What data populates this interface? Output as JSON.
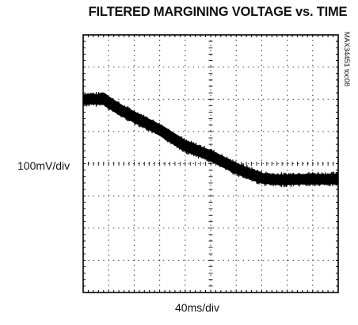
{
  "chart_data": {
    "type": "line",
    "title": "FILTERED MARGINING VOLTAGE vs. TIME",
    "xlabel": "40ms/div",
    "ylabel": "100mV/div",
    "annotation": "MAX34451 toc08",
    "grid": true,
    "xlim": [
      0,
      10
    ],
    "ylim": [
      -4,
      4
    ],
    "series": [
      {
        "x": [
          0,
          0.7,
          0.75,
          1.0,
          1.5,
          2.0,
          2.5,
          3.0,
          3.5,
          4.0,
          4.5,
          5.0,
          5.5,
          6.0,
          6.5,
          7.0,
          7.5,
          8.0,
          8.5,
          9.0,
          9.5,
          10.0
        ],
        "y": [
          2.0,
          2.0,
          2.05,
          1.9,
          1.65,
          1.45,
          1.25,
          1.05,
          0.8,
          0.55,
          0.4,
          0.25,
          0.05,
          -0.15,
          -0.3,
          -0.45,
          -0.5,
          -0.5,
          -0.48,
          -0.48,
          -0.48,
          -0.48
        ]
      }
    ]
  },
  "theme": {
    "trace_color": "#000000",
    "grid_color": "#444444",
    "frame_color": "#000000"
  }
}
